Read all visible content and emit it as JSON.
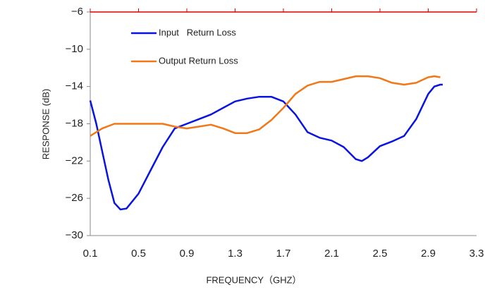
{
  "chart_data": {
    "type": "line",
    "xlabel": "FREQUENCY（GHZ）",
    "ylabel": "RESPONSE (dB)",
    "xlim": [
      0.1,
      3.3
    ],
    "xticks": [
      0.1,
      0.5,
      0.9,
      1.3,
      1.7,
      2.1,
      2.5,
      2.9,
      3.3
    ],
    "ylim": [
      -30,
      -6
    ],
    "yticks": [
      {
        "value": -6,
        "label": "−6"
      },
      {
        "value": -10,
        "label": "−10"
      },
      {
        "value": -14,
        "label": "−14"
      },
      {
        "value": -18,
        "label": "−18"
      },
      {
        "value": -22,
        "label": "−22"
      },
      {
        "value": -26,
        "label": "−26"
      },
      {
        "value": -30,
        "label": "−30"
      }
    ],
    "legend": "upper left",
    "series": [
      {
        "name": "Input   Return Loss",
        "color": "#0a14e0",
        "x": [
          0.1,
          0.15,
          0.2,
          0.25,
          0.3,
          0.35,
          0.4,
          0.5,
          0.6,
          0.7,
          0.8,
          0.9,
          1.0,
          1.1,
          1.2,
          1.3,
          1.4,
          1.5,
          1.6,
          1.7,
          1.8,
          1.9,
          2.0,
          2.1,
          2.2,
          2.3,
          2.35,
          2.4,
          2.5,
          2.6,
          2.7,
          2.8,
          2.9,
          2.95,
          3.0,
          3.02
        ],
        "values": [
          -15.5,
          -18,
          -21,
          -24,
          -26.5,
          -27.2,
          -27.1,
          -25.5,
          -23,
          -20.5,
          -18.5,
          -18.0,
          -17.5,
          -17,
          -16.3,
          -15.6,
          -15.3,
          -15.1,
          -15.1,
          -15.6,
          -17,
          -18.9,
          -19.5,
          -19.8,
          -20.5,
          -21.8,
          -22.0,
          -21.6,
          -20.4,
          -19.9,
          -19.3,
          -17.5,
          -14.8,
          -14.0,
          -13.8,
          -13.8
        ]
      },
      {
        "name": "Output Return Loss",
        "color": "#f07818",
        "x": [
          0.1,
          0.2,
          0.3,
          0.4,
          0.5,
          0.6,
          0.7,
          0.8,
          0.9,
          1.0,
          1.1,
          1.2,
          1.3,
          1.4,
          1.5,
          1.6,
          1.7,
          1.8,
          1.9,
          2.0,
          2.1,
          2.2,
          2.3,
          2.4,
          2.5,
          2.6,
          2.7,
          2.8,
          2.9,
          2.95,
          3.0
        ],
        "values": [
          -19.3,
          -18.5,
          -18.0,
          -18.0,
          -18.0,
          -18.0,
          -18.0,
          -18.3,
          -18.5,
          -18.3,
          -18.1,
          -18.5,
          -19.0,
          -19.0,
          -18.6,
          -17.6,
          -16.3,
          -14.8,
          -13.9,
          -13.5,
          -13.5,
          -13.2,
          -12.9,
          -12.9,
          -13.1,
          -13.6,
          -13.8,
          -13.6,
          -13.0,
          -12.9,
          -13.0
        ]
      }
    ]
  }
}
